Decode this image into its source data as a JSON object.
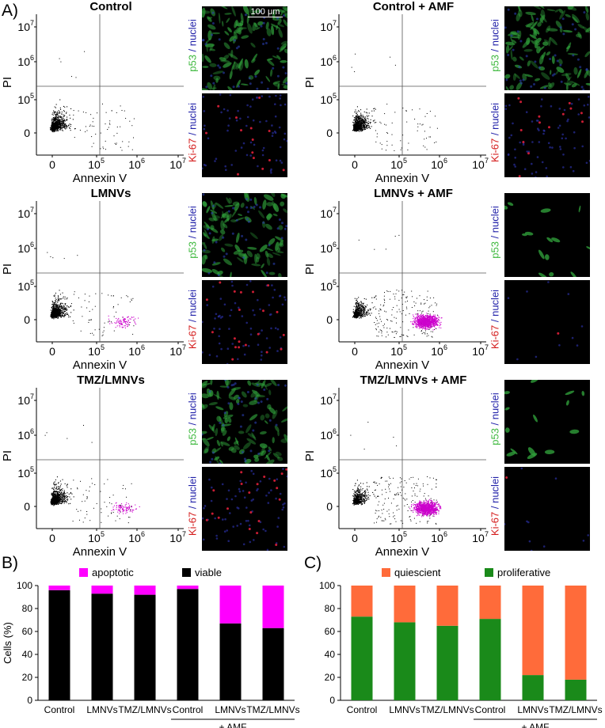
{
  "panels": {
    "a": "A)",
    "b": "B)",
    "c": "C)"
  },
  "flow": {
    "axis_x_label": "Annexin V",
    "axis_y_label": "PI",
    "y_ticks": [
      "10",
      "10",
      "10",
      "0"
    ],
    "y_exps": [
      "7",
      "6",
      "5",
      ""
    ],
    "x_ticks": [
      "0",
      "10",
      "10",
      "10"
    ],
    "x_exps": [
      "",
      "5",
      "6",
      "7"
    ],
    "plots": [
      {
        "title": "Control",
        "apoptotic_level": 0
      },
      {
        "title": "Control + AMF",
        "apoptotic_level": 0
      },
      {
        "title": "LMNVs",
        "apoptotic_level": 1
      },
      {
        "title": "LMNVs + AMF",
        "apoptotic_level": 3
      },
      {
        "title": "TMZ/LMNVs",
        "apoptotic_level": 1
      },
      {
        "title": "TMZ/LMNVs + AMF",
        "apoptotic_level": 3
      }
    ]
  },
  "microscopy": {
    "p53_label_a": "p53",
    "p53_label_b": " / nuclei",
    "ki67_label_a": "Ki-67",
    "ki67_label_b": " / nuclei",
    "scale_bar": "100 μm"
  },
  "chart_data": [
    {
      "type": "bar",
      "panel": "B)",
      "stacked": true,
      "categories": [
        "Control",
        "LMNVs",
        "TMZ/LMNVs",
        "Control",
        "LMNVs",
        "TMZ/LMNVs"
      ],
      "group_label": "+ AMF",
      "ylabel": "Cells (%)",
      "ylim": [
        0,
        100
      ],
      "yticks": [
        0,
        20,
        40,
        60,
        80,
        100
      ],
      "series": [
        {
          "name": "viable",
          "color": "#000000",
          "values": [
            96,
            93,
            92,
            97,
            67,
            63
          ]
        },
        {
          "name": "apoptotic",
          "color": "#ff00ff",
          "values": [
            4,
            7,
            8,
            3,
            33,
            37
          ]
        }
      ],
      "legend": "top"
    },
    {
      "type": "bar",
      "panel": "C)",
      "stacked": true,
      "categories": [
        "Control",
        "LMNVs",
        "TMZ/LMNVs",
        "Control",
        "LMNVs",
        "TMZ/LMNVs"
      ],
      "group_label": "+ AMF",
      "ylim": [
        0,
        100
      ],
      "yticks": [
        0,
        20,
        40,
        60,
        80,
        100
      ],
      "series": [
        {
          "name": "proliferative",
          "color": "#1a8a1a",
          "values": [
            73,
            68,
            65,
            71,
            22,
            18
          ]
        },
        {
          "name": "quiescient",
          "color": "#ff6b3a",
          "values": [
            27,
            32,
            35,
            29,
            78,
            82
          ]
        }
      ],
      "legend": "top"
    }
  ]
}
